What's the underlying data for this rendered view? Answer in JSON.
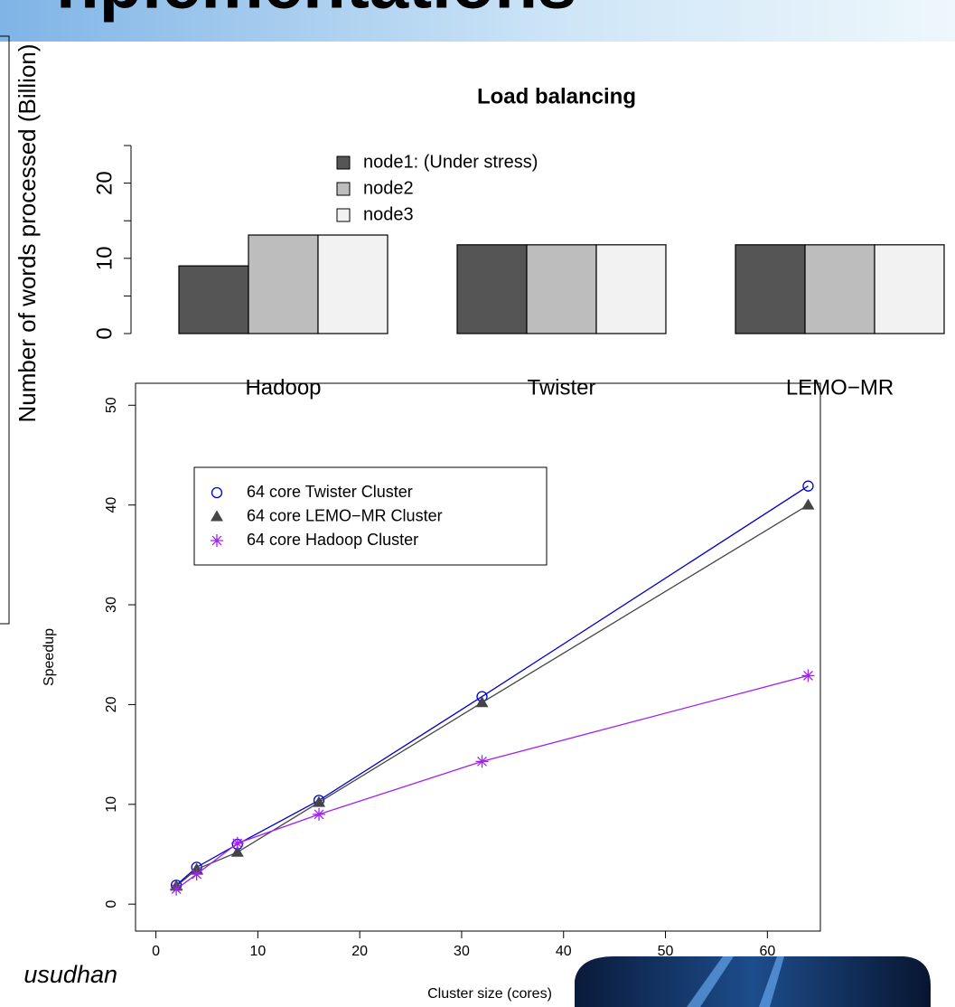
{
  "slide": {
    "title": "nplementations",
    "author_fragment": "usudhan"
  },
  "chart_data": [
    {
      "type": "bar",
      "title": "Load balancing",
      "y_label": "Number of words processed (Billion)",
      "categories": [
        "Hadoop",
        "Twister",
        "LEMO−MR"
      ],
      "series": [
        {
          "name": "node1: (Under stress)",
          "color": "#555555",
          "values": [
            9,
            11.8,
            11.8
          ]
        },
        {
          "name": "node2",
          "color": "#bdbdbd",
          "values": [
            13.1,
            11.8,
            11.8
          ]
        },
        {
          "name": "node3",
          "color": "#f2f2f2",
          "values": [
            13.1,
            11.8,
            11.8
          ]
        }
      ],
      "ylim": [
        0,
        25
      ],
      "yticks": [
        0,
        10,
        20
      ],
      "minor_yticks": [
        5,
        15,
        25
      ]
    },
    {
      "type": "line",
      "x_label": "Cluster size (cores)",
      "y_label": "Speedup",
      "x": [
        2,
        4,
        8,
        16,
        32,
        64
      ],
      "series": [
        {
          "name": "64 core Twister Cluster",
          "color": "#0000cc",
          "marker": "circle",
          "values": [
            1.9,
            3.7,
            6,
            10.4,
            20.8,
            41.9
          ]
        },
        {
          "name": "64 core LEMO−MR Cluster",
          "color": "#444444",
          "marker": "triangle",
          "values": [
            1.8,
            3.5,
            5.2,
            10.2,
            20.2,
            40
          ]
        },
        {
          "name": "64 core Hadoop Cluster",
          "color": "#a020f0",
          "marker": "asterisk",
          "values": [
            1.5,
            3,
            6.1,
            9,
            14.3,
            22.9
          ]
        }
      ],
      "xlim": [
        -2,
        65.2
      ],
      "xticks": [
        0,
        10,
        20,
        30,
        40,
        50,
        60
      ],
      "ylim": [
        -2.7,
        52.2
      ],
      "yticks": [
        0,
        10,
        20,
        30,
        40,
        50
      ]
    }
  ]
}
